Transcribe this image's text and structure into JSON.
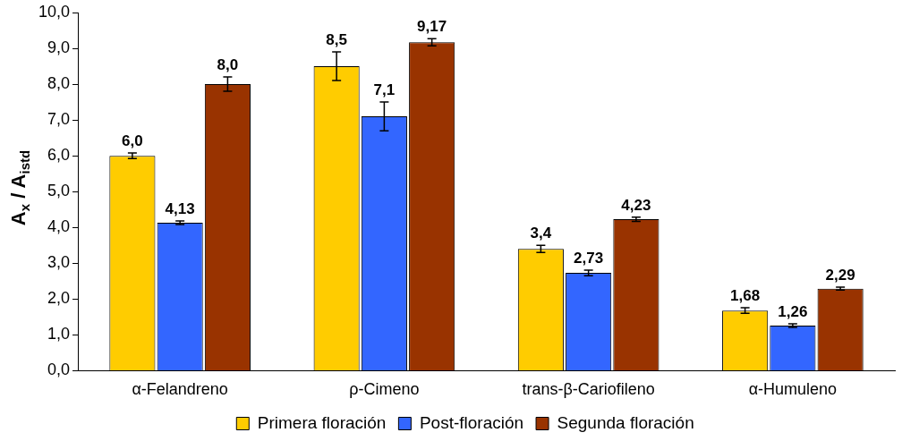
{
  "chart_data": {
    "type": "bar",
    "ylabel": "A$_{x}$ / A$_{istd}$",
    "categories": [
      "α-Felandreno",
      "ρ-Cimeno",
      "trans-β-Cariofileno",
      "α-Humuleno"
    ],
    "series": [
      {
        "name": "Primera floración",
        "color": "#ffcc00",
        "values": [
          6.0,
          8.5,
          3.4,
          1.68
        ],
        "errors": [
          0.08,
          0.4,
          0.1,
          0.08
        ],
        "value_labels": [
          "6,0",
          "8,5",
          "3,4",
          "1,68"
        ]
      },
      {
        "name": "Post-floración",
        "color": "#3366ff",
        "values": [
          4.13,
          7.1,
          2.73,
          1.26
        ],
        "errors": [
          0.05,
          0.4,
          0.08,
          0.05
        ],
        "value_labels": [
          "4,13",
          "7,1",
          "2,73",
          "1,26"
        ]
      },
      {
        "name": "Segunda floración",
        "color": "#993300",
        "values": [
          8.0,
          9.17,
          4.23,
          2.29
        ],
        "errors": [
          0.2,
          0.1,
          0.06,
          0.04
        ],
        "value_labels": [
          "8,0",
          "9,17",
          "4,23",
          "2,29"
        ]
      }
    ],
    "ylim": [
      0,
      10
    ],
    "yticks": [
      {
        "value": 0,
        "label": "0,0"
      },
      {
        "value": 1,
        "label": "1,0"
      },
      {
        "value": 2,
        "label": "2,0"
      },
      {
        "value": 3,
        "label": "3,0"
      },
      {
        "value": 4,
        "label": "4,0"
      },
      {
        "value": 5,
        "label": "5,0"
      },
      {
        "value": 6,
        "label": "6,0"
      },
      {
        "value": 7,
        "label": "7,0"
      },
      {
        "value": 8,
        "label": "8,0"
      },
      {
        "value": 9,
        "label": "9,0"
      },
      {
        "value": 10,
        "label": "10,0"
      }
    ],
    "grid": false,
    "legend": "bottom"
  }
}
